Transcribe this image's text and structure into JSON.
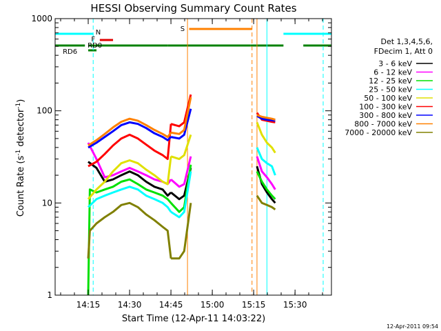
{
  "colors": {
    "cyan": "#00ffff",
    "orange": "#ff8000",
    "green": "#008000",
    "red": "#e00000"
  },
  "chart_data": {
    "type": "line",
    "title": "HESSI Observing Summary Count Rates",
    "xlabel": "Start Time (12-Apr-11 14:03:22)",
    "ylabel_main": "Count Rate (s",
    "ylabel_sup1": "-1",
    "ylabel_mid": " detector",
    "ylabel_sup2": "-1",
    "ylabel_end": ")",
    "y_scale": "log",
    "ylim": [
      1,
      1000
    ],
    "xlim_minutes": [
      14.05,
      15.72
    ],
    "x_ticks": [
      {
        "value": 14.25,
        "label": "14:15"
      },
      {
        "value": 14.5,
        "label": "14:30"
      },
      {
        "value": 14.75,
        "label": "14:45"
      },
      {
        "value": 15.0,
        "label": "15:00"
      },
      {
        "value": 15.25,
        "label": "15:15"
      },
      {
        "value": 15.5,
        "label": "15:30"
      }
    ],
    "y_ticks": [
      {
        "value": 1,
        "label": "1"
      },
      {
        "value": 10,
        "label": "10"
      },
      {
        "value": 100,
        "label": "100"
      },
      {
        "value": 1000,
        "label": "1000"
      }
    ],
    "legend_title": [
      "Det 1,3,4,5,6,",
      "FDecim 1, Att 0"
    ],
    "legend_placement": "right",
    "footer_timestamp": "12-Apr-2011 09:54",
    "flags": [
      {
        "label": "N",
        "color": "#00ffff"
      },
      {
        "label": "F",
        "color": "#e00000"
      },
      {
        "label": "RD0",
        "color": "#008000"
      },
      {
        "label": "RD6",
        "color": "#008000"
      },
      {
        "label": "S",
        "color": "#ff8000"
      }
    ],
    "flag_bars": {
      "N": [
        [
          14.05,
          14.28
        ],
        [
          15.43,
          15.72
        ]
      ],
      "F": [
        [
          14.32,
          14.4
        ]
      ],
      "RD6": [
        [
          14.05,
          14.23
        ],
        [
          14.25,
          14.73
        ],
        [
          15.23,
          15.43
        ],
        [
          15.55,
          15.72
        ]
      ],
      "RD0_marker": [
        [
          14.25,
          14.3
        ]
      ],
      "RD0": [
        [
          14.73,
          15.23
        ]
      ],
      "S": [
        [
          14.86,
          15.24
        ]
      ]
    },
    "vlines": [
      {
        "x": 14.05,
        "color": "#00ffff",
        "style": "solid"
      },
      {
        "x": 14.28,
        "color": "#00ffff",
        "style": "dashed"
      },
      {
        "x": 14.85,
        "color": "#ff8000",
        "style": "solid"
      },
      {
        "x": 15.24,
        "color": "#ff8000",
        "style": "dashed"
      },
      {
        "x": 15.27,
        "color": "#ff8000",
        "style": "solid"
      },
      {
        "x": 15.33,
        "color": "#00ffff",
        "style": "solid"
      },
      {
        "x": 15.67,
        "color": "#00ffff",
        "style": "dashed"
      }
    ],
    "segments": [
      {
        "start": 14.25,
        "end": 14.75
      },
      {
        "start": 14.75,
        "end": 14.87
      },
      {
        "start": 15.27,
        "end": 15.38
      }
    ],
    "series": [
      {
        "name": "3 - 6 keV",
        "color": "#000000",
        "points": [
          [
            14.25,
            28
          ],
          [
            14.3,
            24
          ],
          [
            14.35,
            17
          ],
          [
            14.4,
            18
          ],
          [
            14.45,
            20
          ],
          [
            14.5,
            22
          ],
          [
            14.55,
            20
          ],
          [
            14.6,
            17
          ],
          [
            14.65,
            15
          ],
          [
            14.7,
            14
          ],
          [
            14.73,
            12
          ],
          [
            14.75,
            13
          ],
          [
            14.8,
            11
          ],
          [
            14.83,
            12
          ],
          [
            14.87,
            24
          ],
          [
            15.27,
            25
          ],
          [
            15.3,
            16
          ],
          [
            15.33,
            13
          ],
          [
            15.36,
            11
          ],
          [
            15.38,
            10
          ]
        ]
      },
      {
        "name": "6 - 12 keV",
        "color": "#ff00ff",
        "points": [
          [
            14.25,
            45
          ],
          [
            14.3,
            30
          ],
          [
            14.35,
            19
          ],
          [
            14.4,
            20
          ],
          [
            14.45,
            22
          ],
          [
            14.5,
            24
          ],
          [
            14.55,
            22
          ],
          [
            14.6,
            20
          ],
          [
            14.65,
            18
          ],
          [
            14.7,
            17
          ],
          [
            14.73,
            16
          ],
          [
            14.75,
            18
          ],
          [
            14.8,
            15
          ],
          [
            14.83,
            16
          ],
          [
            14.87,
            32
          ],
          [
            15.27,
            32
          ],
          [
            15.3,
            22
          ],
          [
            15.33,
            19
          ],
          [
            15.36,
            16
          ],
          [
            15.38,
            14
          ]
        ]
      },
      {
        "name": "12 - 25 keV",
        "color": "#00e000",
        "points": [
          [
            14.25,
            1
          ],
          [
            14.26,
            14
          ],
          [
            14.3,
            13
          ],
          [
            14.35,
            14
          ],
          [
            14.4,
            15
          ],
          [
            14.45,
            17
          ],
          [
            14.5,
            18
          ],
          [
            14.55,
            16
          ],
          [
            14.6,
            14
          ],
          [
            14.65,
            13
          ],
          [
            14.7,
            12
          ],
          [
            14.73,
            11
          ],
          [
            14.75,
            10
          ],
          [
            14.8,
            8
          ],
          [
            14.83,
            9
          ],
          [
            14.87,
            26
          ],
          [
            15.27,
            22
          ],
          [
            15.3,
            17
          ],
          [
            15.33,
            14
          ],
          [
            15.36,
            12
          ],
          [
            15.38,
            11
          ]
        ]
      },
      {
        "name": "25 - 50 keV",
        "color": "#00ffff",
        "points": [
          [
            14.25,
            9
          ],
          [
            14.3,
            11
          ],
          [
            14.35,
            12
          ],
          [
            14.4,
            13
          ],
          [
            14.45,
            14
          ],
          [
            14.5,
            15
          ],
          [
            14.55,
            14
          ],
          [
            14.6,
            12
          ],
          [
            14.65,
            11
          ],
          [
            14.7,
            10
          ],
          [
            14.73,
            9
          ],
          [
            14.75,
            8
          ],
          [
            14.8,
            7
          ],
          [
            14.83,
            8
          ],
          [
            14.87,
            22
          ],
          [
            15.27,
            40
          ],
          [
            15.3,
            30
          ],
          [
            15.33,
            27
          ],
          [
            15.36,
            25
          ],
          [
            15.38,
            20
          ]
        ]
      },
      {
        "name": "50 - 100 keV",
        "color": "#e0e000",
        "points": [
          [
            14.25,
            11
          ],
          [
            14.3,
            14
          ],
          [
            14.35,
            17
          ],
          [
            14.4,
            22
          ],
          [
            14.45,
            27
          ],
          [
            14.5,
            29
          ],
          [
            14.55,
            27
          ],
          [
            14.6,
            23
          ],
          [
            14.65,
            20
          ],
          [
            14.7,
            17
          ],
          [
            14.73,
            16
          ],
          [
            14.75,
            32
          ],
          [
            14.8,
            30
          ],
          [
            14.83,
            33
          ],
          [
            14.87,
            55
          ],
          [
            15.27,
            75
          ],
          [
            15.3,
            55
          ],
          [
            15.33,
            45
          ],
          [
            15.36,
            40
          ],
          [
            15.38,
            35
          ]
        ]
      },
      {
        "name": "100 - 300 keV",
        "color": "#ff0000",
        "points": [
          [
            14.25,
            25
          ],
          [
            14.3,
            28
          ],
          [
            14.35,
            34
          ],
          [
            14.4,
            42
          ],
          [
            14.45,
            50
          ],
          [
            14.5,
            55
          ],
          [
            14.55,
            50
          ],
          [
            14.6,
            43
          ],
          [
            14.65,
            37
          ],
          [
            14.7,
            33
          ],
          [
            14.73,
            30
          ],
          [
            14.75,
            72
          ],
          [
            14.8,
            68
          ],
          [
            14.83,
            75
          ],
          [
            14.87,
            150
          ],
          [
            15.27,
            95
          ],
          [
            15.3,
            80
          ],
          [
            15.33,
            78
          ],
          [
            15.36,
            76
          ],
          [
            15.38,
            75
          ]
        ]
      },
      {
        "name": "300 - 800 keV",
        "color": "#0000ff",
        "points": [
          [
            14.25,
            40
          ],
          [
            14.3,
            45
          ],
          [
            14.35,
            52
          ],
          [
            14.4,
            60
          ],
          [
            14.45,
            70
          ],
          [
            14.5,
            75
          ],
          [
            14.55,
            72
          ],
          [
            14.6,
            65
          ],
          [
            14.65,
            57
          ],
          [
            14.7,
            52
          ],
          [
            14.73,
            48
          ],
          [
            14.75,
            52
          ],
          [
            14.8,
            50
          ],
          [
            14.83,
            55
          ],
          [
            14.87,
            105
          ],
          [
            15.27,
            88
          ],
          [
            15.3,
            82
          ],
          [
            15.33,
            80
          ],
          [
            15.36,
            79
          ],
          [
            15.38,
            78
          ]
        ]
      },
      {
        "name": "800 - 7000 keV",
        "color": "#ff8000",
        "points": [
          [
            14.25,
            42
          ],
          [
            14.3,
            48
          ],
          [
            14.35,
            56
          ],
          [
            14.4,
            66
          ],
          [
            14.45,
            76
          ],
          [
            14.5,
            82
          ],
          [
            14.55,
            78
          ],
          [
            14.6,
            70
          ],
          [
            14.65,
            62
          ],
          [
            14.7,
            56
          ],
          [
            14.73,
            52
          ],
          [
            14.75,
            58
          ],
          [
            14.8,
            56
          ],
          [
            14.83,
            62
          ],
          [
            14.87,
            140
          ],
          [
            15.27,
            90
          ],
          [
            15.3,
            86
          ],
          [
            15.33,
            84
          ],
          [
            15.36,
            82
          ],
          [
            15.38,
            80
          ]
        ]
      },
      {
        "name": "7000 - 20000 keV",
        "color": "#808000",
        "points": [
          [
            14.25,
            2.5
          ],
          [
            14.26,
            5
          ],
          [
            14.3,
            6
          ],
          [
            14.35,
            7
          ],
          [
            14.4,
            8
          ],
          [
            14.45,
            9.5
          ],
          [
            14.5,
            10
          ],
          [
            14.55,
            9
          ],
          [
            14.6,
            7.5
          ],
          [
            14.65,
            6.5
          ],
          [
            14.7,
            5.5
          ],
          [
            14.73,
            5
          ],
          [
            14.75,
            2.5
          ],
          [
            14.8,
            2.5
          ],
          [
            14.83,
            3
          ],
          [
            14.87,
            10
          ],
          [
            15.27,
            12
          ],
          [
            15.3,
            10
          ],
          [
            15.33,
            9.5
          ],
          [
            15.36,
            9
          ],
          [
            15.38,
            8.5
          ]
        ]
      }
    ]
  }
}
